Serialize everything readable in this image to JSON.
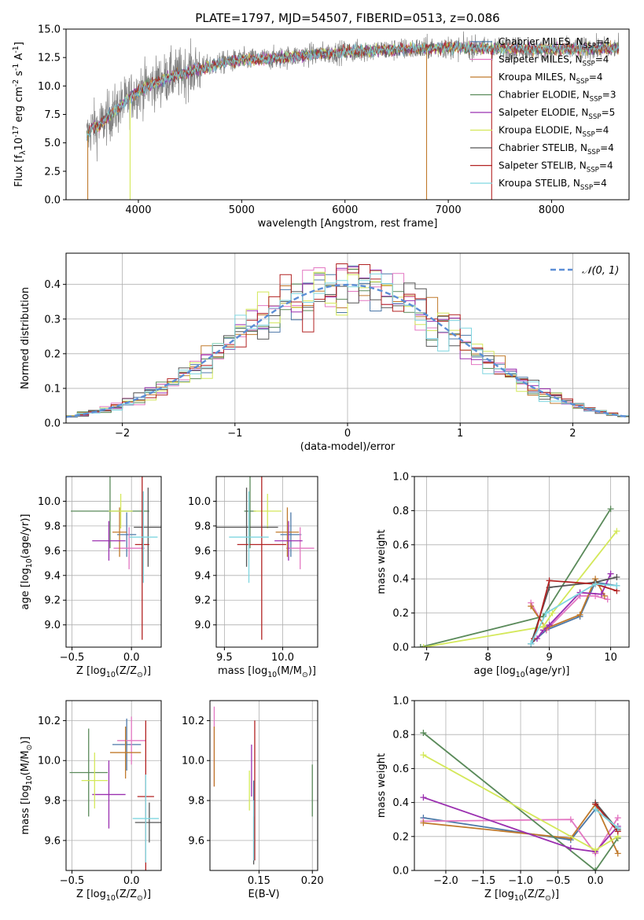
{
  "figure": {
    "title": "PLATE=1797, MJD=54507, FIBERID=0513, z=0.086"
  },
  "series_legend": [
    {
      "name": "Chabrier MILES, N$_{SSP}$=4",
      "color": "#4c78a8"
    },
    {
      "name": "Salpeter MILES, N$_{SSP}$=4",
      "color": "#e377c2"
    },
    {
      "name": "Kroupa MILES, N$_{SSP}$=4",
      "color": "#c07a2c"
    },
    {
      "name": "Chabrier ELODIE, N$_{SSP}$=3",
      "color": "#5a8a5a"
    },
    {
      "name": "Salpeter ELODIE, N$_{SSP}$=5",
      "color": "#9b30b0"
    },
    {
      "name": "Kroupa ELODIE, N$_{SSP}$=4",
      "color": "#d4e85a"
    },
    {
      "name": "Chabrier STELIB, N$_{SSP}$=4",
      "color": "#555555"
    },
    {
      "name": "Salpeter STELIB, N$_{SSP}$=4",
      "color": "#b22222"
    },
    {
      "name": "Kroupa STELIB, N$_{SSP}$=4",
      "color": "#7fd6e0"
    }
  ],
  "chart_data": [
    {
      "id": "spectrum",
      "type": "line",
      "xlabel": "wavelength [Angstrom, rest frame]",
      "ylabel": "Flux [f$_\\lambda$10$^{-17}$ erg cm$^{-2}$ s$^{-1}$ A$^{-1}$]",
      "xlim": [
        3300,
        8750
      ],
      "ylim": [
        0,
        15
      ],
      "xticks": [
        4000,
        5000,
        6000,
        7000,
        8000
      ],
      "yticks": [
        0.0,
        2.5,
        5.0,
        7.5,
        10.0,
        12.5,
        15.0
      ],
      "ytick_labels": [
        "0.0",
        "2.5",
        "5.0",
        "7.5",
        "10.0",
        "12.5",
        "15.0"
      ],
      "grid": false,
      "legend": "right",
      "data_color": "#808080",
      "data_range": [
        3500,
        8650
      ],
      "continuum": {
        "x": [
          3500,
          3560,
          3600,
          3700,
          3800,
          3900,
          4000,
          4100,
          4300,
          4500,
          4800,
          5000,
          5300,
          5600,
          6000,
          6500,
          7000,
          7500,
          8000,
          8600
        ],
        "y": [
          5.5,
          6.5,
          6.3,
          7.2,
          8.0,
          8.8,
          9.6,
          10.0,
          10.8,
          11.3,
          12.0,
          12.3,
          12.4,
          12.7,
          13.0,
          13.2,
          13.4,
          13.3,
          13.2,
          13.3
        ]
      },
      "spikes": [
        {
          "x": 3510,
          "y": 0.0
        },
        {
          "x": 3920,
          "y": 0.0
        },
        {
          "x": 6790,
          "y": 0.0
        },
        {
          "x": 7420,
          "y": 0.0
        }
      ]
    },
    {
      "id": "residuals",
      "type": "histogram",
      "xlabel": "(data-model)/error",
      "ylabel": "Normed distribution",
      "xlim": [
        -2.5,
        2.5
      ],
      "ylim": [
        0,
        0.49
      ],
      "xticks": [
        -2,
        -1,
        0,
        1,
        2
      ],
      "xtick_labels": [
        "−2",
        "−1",
        "0",
        "1",
        "2"
      ],
      "yticks": [
        0.0,
        0.1,
        0.2,
        0.3,
        0.4
      ],
      "ytick_labels": [
        "0.0",
        "0.1",
        "0.2",
        "0.3",
        "0.4"
      ],
      "grid": true,
      "legend": "top-right",
      "normal_label": "$\\mathcal{N}(0,1)$",
      "normal_color": "#5b8ed6",
      "bin_width": 0.1
    },
    {
      "id": "z_vs_age",
      "type": "scatter",
      "xlabel": "Z [log$_{10}$($Z/Z_\\odot$)]",
      "ylabel": "age  [log$_{10}$($age/yr$)]",
      "xlim": [
        -0.55,
        0.25
      ],
      "ylim": [
        8.82,
        10.2
      ],
      "xticks": [
        -0.5,
        0.0
      ],
      "xtick_labels": [
        "−0.5",
        "0.0"
      ],
      "yticks": [
        9.0,
        9.2,
        9.4,
        9.6,
        9.8,
        10.0
      ],
      "ytick_labels": [
        "9.0",
        "9.2",
        "9.4",
        "9.6",
        "9.8",
        "10.0"
      ],
      "grid": true,
      "points": [
        {
          "series": 0,
          "x": -0.04,
          "xerr": 0.08,
          "y": 9.73,
          "yerr": 0.18
        },
        {
          "series": 1,
          "x": -0.02,
          "xerr": 0.13,
          "y": 9.62,
          "yerr": 0.17
        },
        {
          "series": 2,
          "x": -0.1,
          "xerr": 0.06,
          "y": 9.75,
          "yerr": 0.2
        },
        {
          "series": 3,
          "x": -0.18,
          "xerr": 0.33,
          "y": 9.92,
          "yerr": 0.3
        },
        {
          "series": 4,
          "x": -0.19,
          "xerr": 0.14,
          "y": 9.68,
          "yerr": 0.16
        },
        {
          "series": 5,
          "x": -0.09,
          "xerr": 0.1,
          "y": 9.92,
          "yerr": 0.14
        },
        {
          "series": 6,
          "x": 0.14,
          "xerr": 0.12,
          "y": 9.79,
          "yerr": 0.32
        },
        {
          "series": 7,
          "x": 0.09,
          "xerr": 0.06,
          "y": 9.65,
          "yerr": 0.77
        },
        {
          "series": 8,
          "x": 0.1,
          "xerr": 0.12,
          "y": 9.71,
          "yerr": 0.37
        }
      ]
    },
    {
      "id": "mass_vs_age",
      "type": "scatter",
      "xlabel": "mass [log$_{10}$($M/M_\\odot$)]",
      "ylabel": "",
      "xlim": [
        9.43,
        10.3
      ],
      "ylim": [
        8.82,
        10.2
      ],
      "xticks": [
        9.5,
        10.0
      ],
      "xtick_labels": [
        "9.5",
        "10.0"
      ],
      "yticks": [
        9.0,
        9.2,
        9.4,
        9.6,
        9.8,
        10.0
      ],
      "ytick_labels": [
        "9.0",
        "9.2",
        "9.4",
        "9.6",
        "9.8",
        "10.0"
      ],
      "grid": true,
      "points": [
        {
          "series": 0,
          "x": 10.07,
          "xerr": 0.09,
          "y": 9.73,
          "yerr": 0.18
        },
        {
          "series": 1,
          "x": 10.15,
          "xerr": 0.12,
          "y": 9.62,
          "yerr": 0.17
        },
        {
          "series": 2,
          "x": 10.04,
          "xerr": 0.1,
          "y": 9.75,
          "yerr": 0.2
        },
        {
          "series": 3,
          "x": 9.72,
          "xerr": 0.05,
          "y": 9.92,
          "yerr": 0.3
        },
        {
          "series": 4,
          "x": 10.05,
          "xerr": 0.12,
          "y": 9.68,
          "yerr": 0.16
        },
        {
          "series": 5,
          "x": 9.87,
          "xerr": 0.12,
          "y": 9.92,
          "yerr": 0.14
        },
        {
          "series": 6,
          "x": 9.69,
          "xerr": 0.27,
          "y": 9.79,
          "yerr": 0.32
        },
        {
          "series": 7,
          "x": 9.82,
          "xerr": 0.21,
          "y": 9.65,
          "yerr": 0.77
        },
        {
          "series": 8,
          "x": 9.71,
          "xerr": 0.17,
          "y": 9.71,
          "yerr": 0.37
        }
      ]
    },
    {
      "id": "age_vs_weight",
      "type": "line",
      "xlabel": "age  [log$_{10}$($age/yr$)]",
      "ylabel": "mass weight",
      "xlim": [
        6.8,
        10.3
      ],
      "ylim": [
        0,
        1
      ],
      "xticks": [
        7,
        8,
        9,
        10
      ],
      "xtick_labels": [
        "7",
        "8",
        "9",
        "10"
      ],
      "yticks": [
        0.0,
        0.2,
        0.4,
        0.6,
        0.8,
        1.0
      ],
      "ytick_labels": [
        "0.0",
        "0.2",
        "0.4",
        "0.6",
        "0.8",
        "1.0"
      ],
      "grid": true,
      "lines": [
        {
          "series": 0,
          "x": [
            8.7,
            8.95,
            9.5,
            9.75,
            10.1
          ],
          "y": [
            0.02,
            0.1,
            0.18,
            0.38,
            0.36
          ]
        },
        {
          "series": 1,
          "x": [
            8.7,
            8.95,
            9.5,
            9.75,
            9.95
          ],
          "y": [
            0.26,
            0.1,
            0.3,
            0.3,
            0.28
          ]
        },
        {
          "series": 2,
          "x": [
            8.7,
            8.95,
            9.5,
            9.75,
            9.9
          ],
          "y": [
            0.24,
            0.11,
            0.19,
            0.4,
            0.3
          ]
        },
        {
          "series": 3,
          "x": [
            6.9,
            8.9,
            10.0
          ],
          "y": [
            0.0,
            0.18,
            0.81
          ]
        },
        {
          "series": 4,
          "x": [
            8.8,
            8.9,
            9.0,
            9.5,
            9.85,
            10.0
          ],
          "y": [
            0.05,
            0.1,
            0.13,
            0.32,
            0.31,
            0.43
          ]
        },
        {
          "series": 5,
          "x": [
            6.95,
            8.9,
            9.05,
            10.1
          ],
          "y": [
            0.0,
            0.12,
            0.2,
            0.68
          ]
        },
        {
          "series": 6,
          "x": [
            8.7,
            9.0,
            9.75,
            10.1
          ],
          "y": [
            0.02,
            0.35,
            0.38,
            0.41
          ]
        },
        {
          "series": 7,
          "x": [
            8.75,
            9.0,
            9.75,
            10.1
          ],
          "y": [
            0.05,
            0.39,
            0.37,
            0.33
          ]
        },
        {
          "series": 8,
          "x": [
            8.7,
            8.95,
            9.75,
            10.1
          ],
          "y": [
            0.02,
            0.2,
            0.37,
            0.36
          ]
        }
      ]
    },
    {
      "id": "z_vs_mass",
      "type": "scatter",
      "xlabel": "Z [log$_{10}$($Z/Z_\\odot$)]",
      "ylabel": "mass [log$_{10}$($M/M_\\odot$)]",
      "xlim": [
        -0.55,
        0.25
      ],
      "ylim": [
        9.45,
        10.3
      ],
      "xticks": [
        -0.5,
        0.0
      ],
      "xtick_labels": [
        "−0.5",
        "0.0"
      ],
      "yticks": [
        9.6,
        9.8,
        10.0,
        10.2
      ],
      "ytick_labels": [
        "9.6",
        "9.8",
        "10.0",
        "10.2"
      ],
      "grid": true,
      "points": [
        {
          "series": 0,
          "x": -0.04,
          "xerr": 0.12,
          "y": 10.08,
          "yerr": 0.13
        },
        {
          "series": 1,
          "x": 0.0,
          "xerr": 0.12,
          "y": 10.1,
          "yerr": 0.12
        },
        {
          "series": 2,
          "x": -0.05,
          "xerr": 0.13,
          "y": 10.04,
          "yerr": 0.13
        },
        {
          "series": 3,
          "x": -0.36,
          "xerr": 0.16,
          "y": 9.94,
          "yerr": 0.22
        },
        {
          "series": 4,
          "x": -0.19,
          "xerr": 0.14,
          "y": 9.83,
          "yerr": 0.17
        },
        {
          "series": 5,
          "x": -0.31,
          "xerr": 0.11,
          "y": 9.9,
          "yerr": 0.14
        },
        {
          "series": 6,
          "x": 0.15,
          "xerr": 0.12,
          "y": 9.69,
          "yerr": 0.1
        },
        {
          "series": 7,
          "x": 0.12,
          "xerr": 0.07,
          "y": 9.82,
          "yerr": 0.38
        },
        {
          "series": 8,
          "x": 0.12,
          "xerr": 0.11,
          "y": 9.71,
          "yerr": 0.22
        }
      ]
    },
    {
      "id": "ebv_vs_mass",
      "type": "scatter",
      "xlabel": "E(B-V)",
      "ylabel": "",
      "xlim": [
        0.104,
        0.205
      ],
      "ylim": [
        9.45,
        10.3
      ],
      "xticks": [
        0.15,
        0.2
      ],
      "xtick_labels": [
        "0.15",
        "0.20"
      ],
      "yticks": [
        9.6,
        9.8,
        10.0,
        10.2
      ],
      "ytick_labels": [
        "9.6",
        "9.8",
        "10.0",
        "10.2"
      ],
      "grid": true,
      "points": [
        {
          "series": 0,
          "x": 0.145,
          "xerr": 0.0,
          "y": 9.7,
          "yerr": 0.2
        },
        {
          "series": 1,
          "x": 0.108,
          "xerr": 0.0,
          "y": 10.07,
          "yerr": 0.2
        },
        {
          "series": 2,
          "x": 0.108,
          "xerr": 0.0,
          "y": 10.02,
          "yerr": 0.15
        },
        {
          "series": 3,
          "x": 0.2,
          "xerr": 0.0,
          "y": 9.85,
          "yerr": 0.13
        },
        {
          "series": 4,
          "x": 0.143,
          "xerr": 0.0,
          "y": 9.95,
          "yerr": 0.13
        },
        {
          "series": 5,
          "x": 0.141,
          "xerr": 0.0,
          "y": 9.85,
          "yerr": 0.1
        },
        {
          "series": 6,
          "x": 0.145,
          "xerr": 0.0,
          "y": 9.6,
          "yerr": 0.12
        },
        {
          "series": 7,
          "x": 0.146,
          "xerr": 0.0,
          "y": 9.85,
          "yerr": 0.35
        },
        {
          "series": 8,
          "x": 0.145,
          "xerr": 0.0,
          "y": 9.65,
          "yerr": 0.15
        }
      ]
    },
    {
      "id": "z_vs_weight",
      "type": "line",
      "xlabel": "Z [log$_{10}$($Z/Z_\\odot$)]",
      "ylabel": "mass weight",
      "xlim": [
        -2.42,
        0.45
      ],
      "ylim": [
        0,
        1
      ],
      "xticks": [
        -2.0,
        -1.5,
        -1.0,
        -0.5,
        0.0
      ],
      "xtick_labels": [
        "−2.0",
        "−1.5",
        "−1.0",
        "−0.5",
        "0.0"
      ],
      "yticks": [
        0.0,
        0.2,
        0.4,
        0.6,
        0.8,
        1.0
      ],
      "ytick_labels": [
        "0.0",
        "0.2",
        "0.4",
        "0.6",
        "0.8",
        "1.0"
      ],
      "grid": true,
      "lines": [
        {
          "series": 0,
          "x": [
            -2.3,
            -0.33,
            0.0,
            0.3
          ],
          "y": [
            0.31,
            0.18,
            0.36,
            0.25
          ]
        },
        {
          "series": 1,
          "x": [
            -2.3,
            -0.33,
            0.0,
            0.3
          ],
          "y": [
            0.29,
            0.3,
            0.1,
            0.31
          ]
        },
        {
          "series": 2,
          "x": [
            -2.3,
            -0.33,
            0.0,
            0.3
          ],
          "y": [
            0.28,
            0.19,
            0.39,
            0.1
          ]
        },
        {
          "series": 3,
          "x": [
            -2.3,
            0.0,
            0.3
          ],
          "y": [
            0.81,
            0.0,
            0.19
          ]
        },
        {
          "series": 4,
          "x": [
            -2.3,
            -0.33,
            0.0,
            0.3
          ],
          "y": [
            0.43,
            0.13,
            0.11,
            0.26
          ]
        },
        {
          "series": 5,
          "x": [
            -2.3,
            0.0,
            0.3
          ],
          "y": [
            0.68,
            0.12,
            0.2
          ]
        },
        {
          "series": 6,
          "x": [
            0.0,
            0.3
          ],
          "y": [
            0.4,
            0.24
          ]
        },
        {
          "series": 7,
          "x": [
            0.0,
            0.3
          ],
          "y": [
            0.39,
            0.23
          ]
        },
        {
          "series": 8,
          "x": [
            0.0,
            0.3
          ],
          "y": [
            0.36,
            0.25
          ]
        }
      ]
    }
  ]
}
